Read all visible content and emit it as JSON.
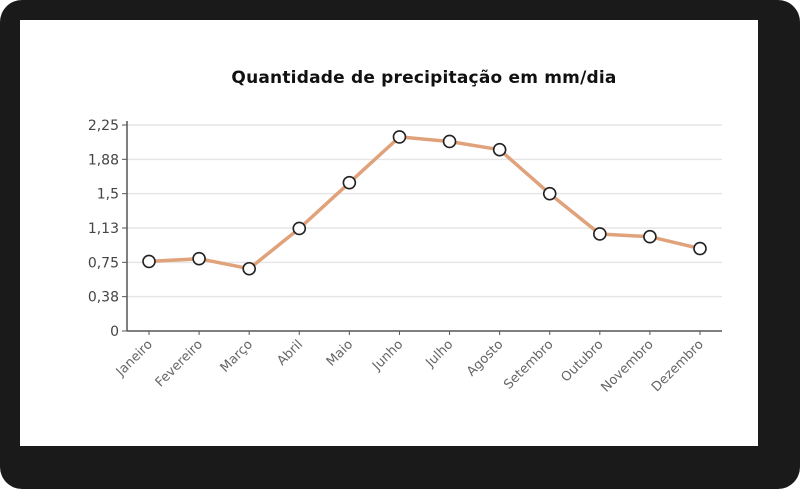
{
  "chart_data": {
    "type": "line",
    "title": "Quantidade de precipitação em mm/dia",
    "categories": [
      "Janeiro",
      "Fevereiro",
      "Março",
      "Abril",
      "Maio",
      "Junho",
      "Julho",
      "Agosto",
      "Setembro",
      "Outubro",
      "Novembro",
      "Dezembro"
    ],
    "series": [
      {
        "values": [
          0.76,
          0.79,
          0.68,
          1.12,
          1.62,
          2.12,
          2.07,
          1.98,
          1.5,
          1.06,
          1.03,
          0.9
        ]
      }
    ],
    "yticks": [
      "0",
      "0,38",
      "0,75",
      "1,13",
      "1,5",
      "1,88",
      "2,25"
    ],
    "ytick_values": [
      0,
      0.375,
      0.75,
      1.125,
      1.5,
      1.875,
      2.25
    ],
    "ylim": [
      0,
      2.25
    ],
    "xlabel": "",
    "ylabel": "",
    "grid": true,
    "legend": "none",
    "colors": {
      "line": "#e0a27a",
      "marker_fill": "#ffffff",
      "marker_stroke": "#222222",
      "grid": "#e6e6e6",
      "axis": "#555555",
      "frame": "#1a1a1a"
    }
  }
}
